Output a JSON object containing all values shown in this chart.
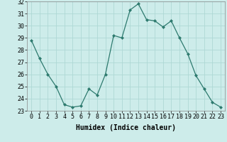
{
  "x": [
    0,
    1,
    2,
    3,
    4,
    5,
    6,
    7,
    8,
    9,
    10,
    11,
    12,
    13,
    14,
    15,
    16,
    17,
    18,
    19,
    20,
    21,
    22,
    23
  ],
  "y": [
    28.8,
    27.3,
    26.0,
    25.0,
    23.5,
    23.3,
    23.4,
    24.8,
    24.3,
    26.0,
    29.2,
    29.0,
    31.3,
    31.8,
    30.5,
    30.4,
    29.9,
    30.4,
    29.0,
    27.7,
    25.9,
    24.8,
    23.7,
    23.3
  ],
  "line_color": "#2d7a6e",
  "marker": "D",
  "marker_size": 2,
  "bg_color": "#cdecea",
  "grid_color": "#aed8d5",
  "xlabel": "Humidex (Indice chaleur)",
  "ylim": [
    23,
    32
  ],
  "yticks": [
    23,
    24,
    25,
    26,
    27,
    28,
    29,
    30,
    31,
    32
  ],
  "xticks": [
    0,
    1,
    2,
    3,
    4,
    5,
    6,
    7,
    8,
    9,
    10,
    11,
    12,
    13,
    14,
    15,
    16,
    17,
    18,
    19,
    20,
    21,
    22,
    23
  ],
  "xlabel_fontsize": 7,
  "tick_fontsize": 6
}
